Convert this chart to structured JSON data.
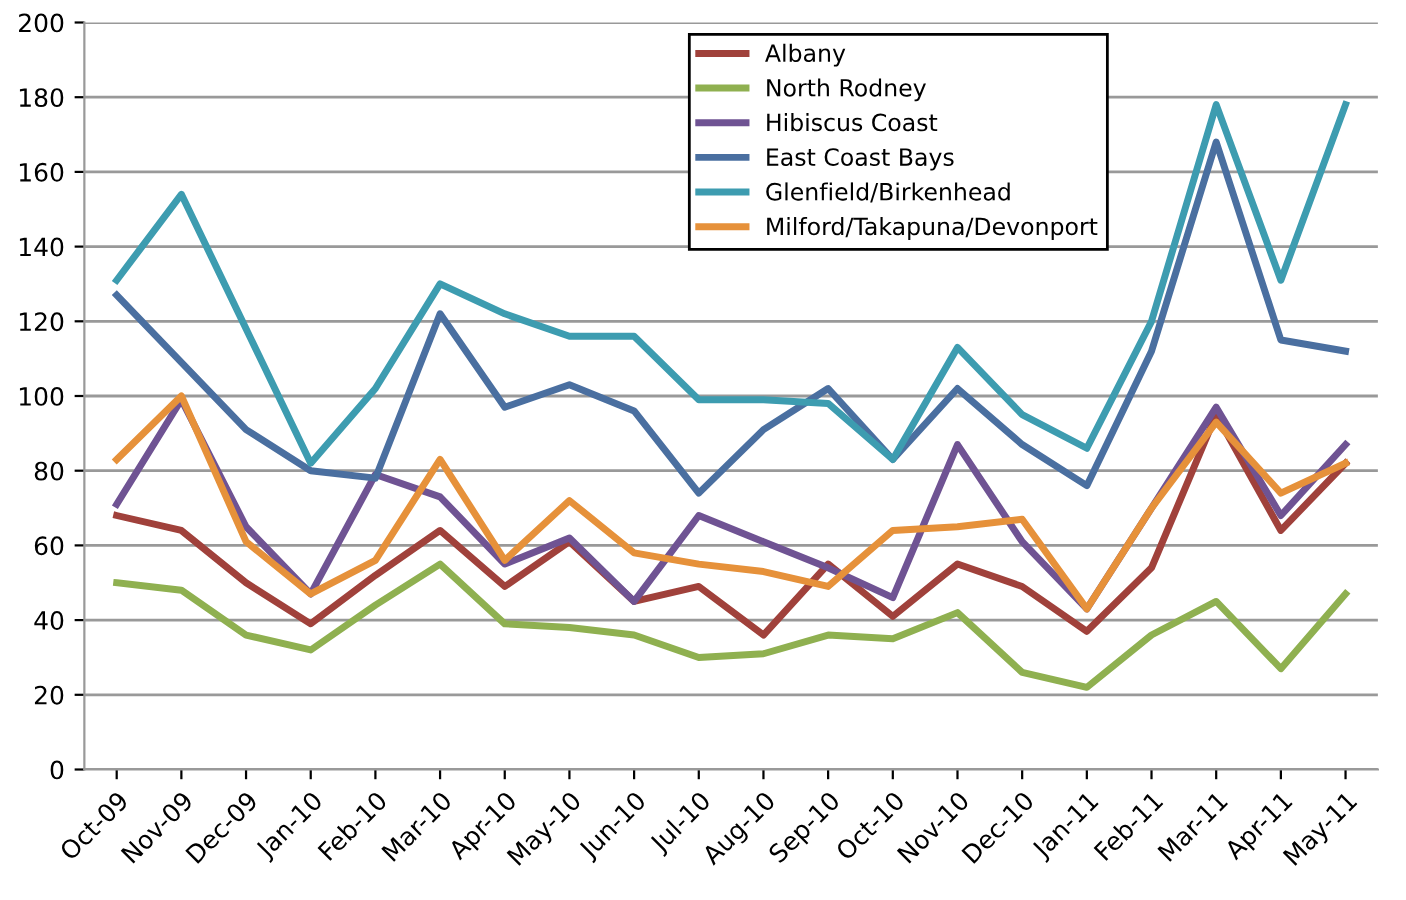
{
  "chart_data": {
    "type": "line",
    "categories": [
      "Oct-09",
      "Nov-09",
      "Dec-09",
      "Jan-10",
      "Feb-10",
      "Mar-10",
      "Apr-10",
      "May-10",
      "Jun-10",
      "Jul-10",
      "Aug-10",
      "Sep-10",
      "Oct-10",
      "Nov-10",
      "Dec-10",
      "Jan-11",
      "Feb-11",
      "Mar-11",
      "Apr-11",
      "May-11"
    ],
    "series": [
      {
        "name": "Albany",
        "color": "#a0413b",
        "values": [
          68,
          64,
          50,
          39,
          52,
          64,
          49,
          61,
          45,
          49,
          36,
          55,
          41,
          55,
          49,
          37,
          54,
          95,
          64,
          82
        ]
      },
      {
        "name": "North Rodney",
        "color": "#8fb050",
        "values": [
          50,
          48,
          36,
          32,
          44,
          55,
          39,
          38,
          36,
          30,
          31,
          36,
          35,
          42,
          26,
          22,
          36,
          45,
          27,
          47
        ]
      },
      {
        "name": "Hibiscus Coast",
        "color": "#6f5393",
        "values": [
          71,
          99,
          65,
          47,
          79,
          73,
          55,
          62,
          45,
          68,
          61,
          54,
          46,
          87,
          61,
          43,
          70,
          97,
          68,
          87
        ]
      },
      {
        "name": "East Coast Bays",
        "color": "#4a6fa0",
        "values": [
          127,
          109,
          91,
          80,
          78,
          122,
          97,
          103,
          96,
          74,
          91,
          102,
          83,
          102,
          87,
          76,
          112,
          168,
          115,
          112
        ]
      },
      {
        "name": "Glenfield/Birkenhead",
        "color": "#3d9cb0",
        "values": [
          131,
          154,
          118,
          82,
          102,
          130,
          122,
          116,
          116,
          99,
          99,
          98,
          83,
          113,
          95,
          86,
          120,
          178,
          131,
          178
        ]
      },
      {
        "name": "Milford/Takapuna/Devonport",
        "color": "#e6913a",
        "values": [
          83,
          100,
          61,
          47,
          56,
          83,
          56,
          72,
          58,
          55,
          53,
          49,
          64,
          65,
          67,
          43,
          70,
          93,
          74,
          82
        ]
      }
    ],
    "ylim": [
      0,
      200
    ],
    "yticks": [
      0,
      20,
      40,
      60,
      80,
      100,
      120,
      140,
      160,
      180,
      200
    ],
    "grid": "y",
    "legend": "top right"
  }
}
